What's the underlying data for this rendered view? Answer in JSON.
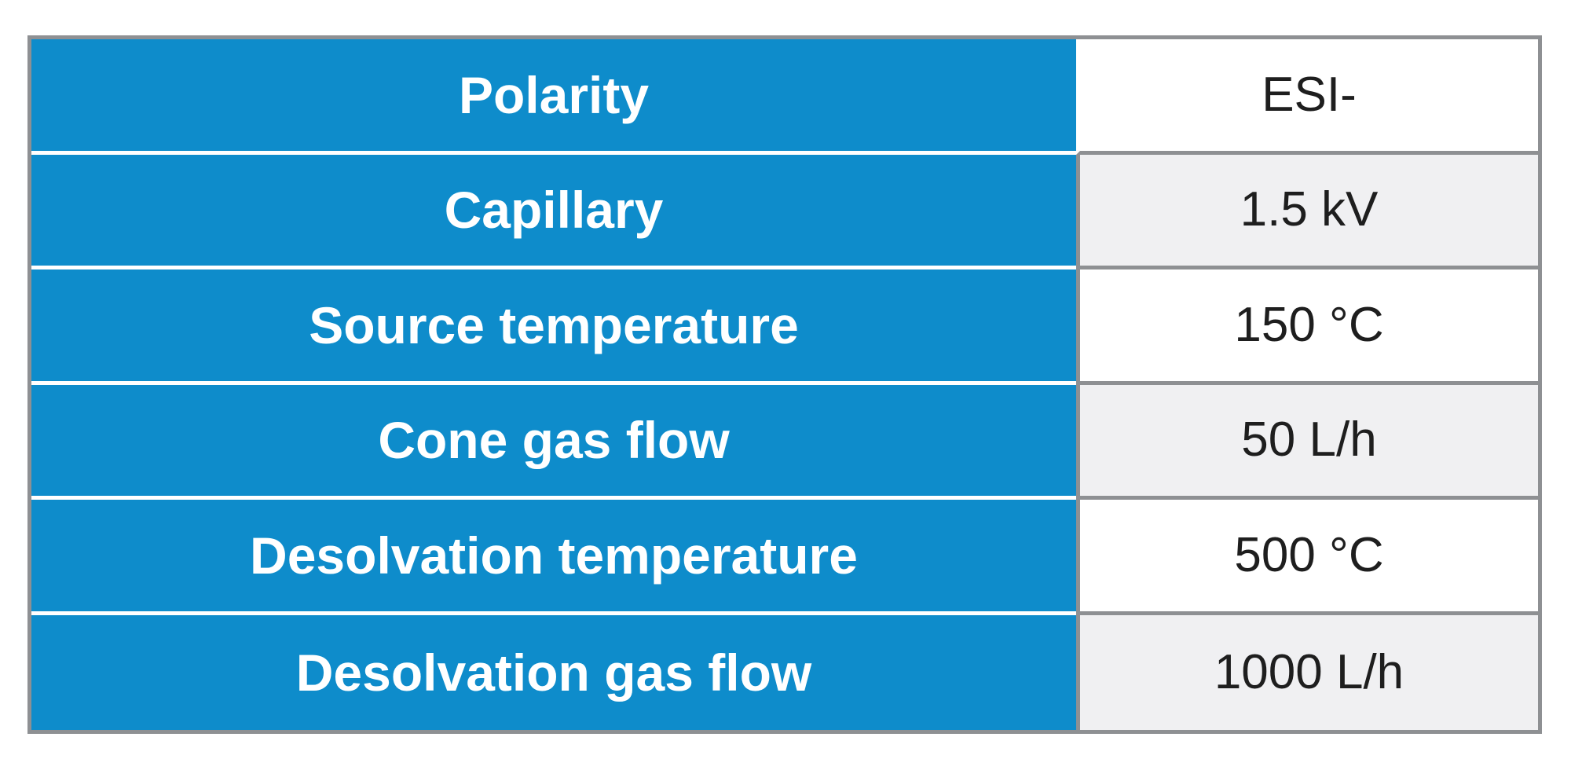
{
  "table": {
    "rows": [
      {
        "label": "Polarity",
        "value": "ESI-"
      },
      {
        "label": "Capillary",
        "value": "1.5 kV"
      },
      {
        "label": "Source temperature",
        "value": "150 °C"
      },
      {
        "label": "Cone gas flow",
        "value": "50 L/h"
      },
      {
        "label": "Desolvation temperature",
        "value": "500 °C"
      },
      {
        "label": "Desolvation gas flow",
        "value": "1000 L/h"
      }
    ]
  },
  "chart_data": {
    "type": "table",
    "rows": [
      [
        "Polarity",
        "ESI-"
      ],
      [
        "Capillary",
        "1.5 kV"
      ],
      [
        "Source temperature",
        "150 °C"
      ],
      [
        "Cone gas flow",
        "50 L/h"
      ],
      [
        "Desolvation temperature",
        "500 °C"
      ],
      [
        "Desolvation gas flow",
        "1000 L/h"
      ]
    ]
  },
  "colors": {
    "header_blue": "#0E8CCB",
    "row_alt_gray": "#F0F0F2",
    "border_gray": "#8E9093",
    "text_white": "#FFFFFF",
    "text_black": "#1E1E1E",
    "divider_white": "#FFFFFF",
    "value_white": "#FFFFFF",
    "page_bg": "#FFFFFF"
  }
}
